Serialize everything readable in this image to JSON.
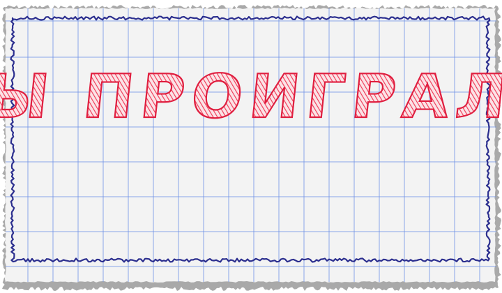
{
  "game_over": {
    "message": "ВЫ ПРОИГРАЛИ"
  },
  "colors": {
    "paper": "#f3f3f3",
    "grid": "#6f92e6",
    "border": "#2c2f8f",
    "text_fill": "#ef3a55",
    "text_outline": "#e01e3f",
    "torn_edge": "#a9a9a9"
  }
}
